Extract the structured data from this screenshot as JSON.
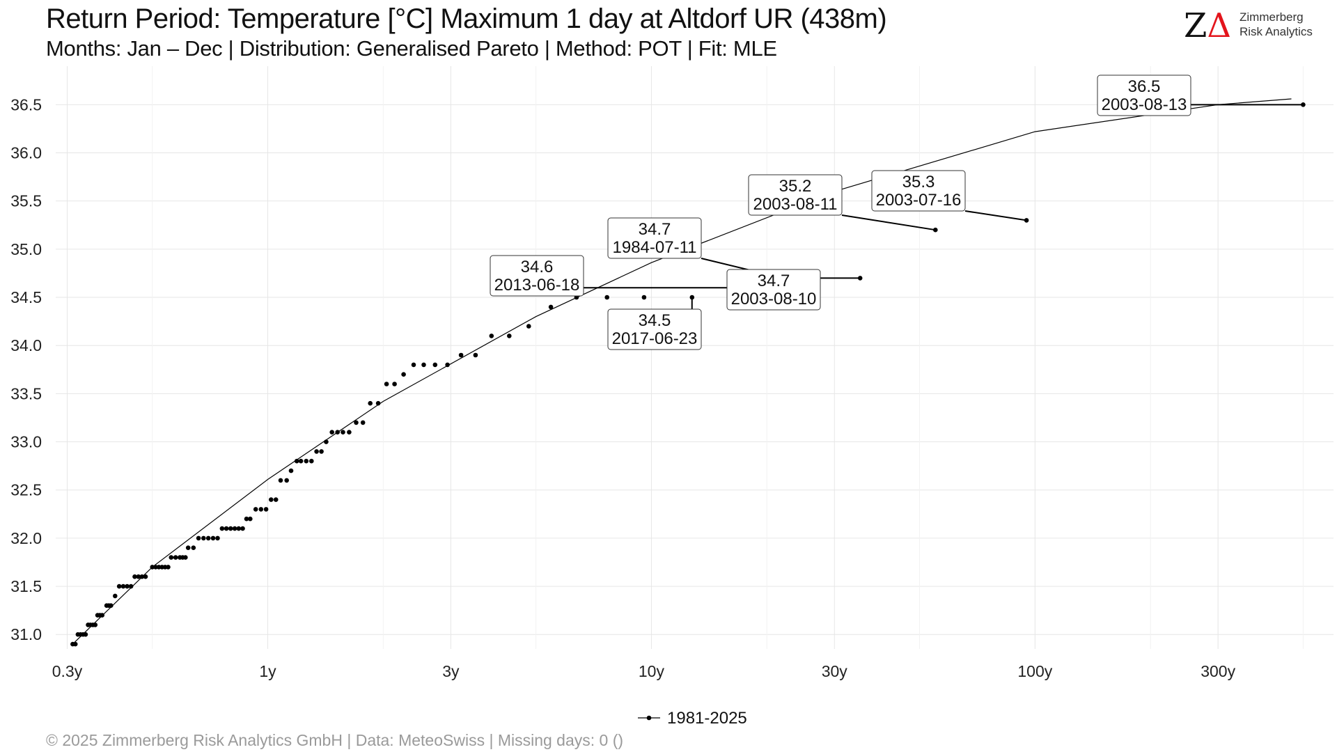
{
  "header": {
    "title": "Return Period: Temperature [°C] Maximum 1 day at Altdorf  UR (438m)",
    "subtitle": "Months: Jan – Dec | Distribution: Generalised Pareto | Method: POT | Fit: MLE"
  },
  "logo": {
    "mark_z": "Z",
    "mark_delta": "Δ",
    "line1": "Zimmerberg",
    "line2": "Risk Analytics"
  },
  "footer": {
    "text": "©  2025 Zimmerberg Risk Analytics GmbH | Data: MeteoSwiss | Missing days: 0 ()"
  },
  "colors": {
    "points": "#000000",
    "fit_line": "#000000",
    "grid": "#e6e6e6",
    "brand_red": "#e3141b"
  },
  "chart_data": {
    "type": "scatter",
    "x_scale": "log",
    "xlabel": "",
    "ylabel": "",
    "xlim": [
      0.28,
      600
    ],
    "ylim": [
      30.85,
      36.9
    ],
    "x_ticks": [
      0.3,
      1,
      3,
      10,
      30,
      100,
      300
    ],
    "x_tick_labels": [
      "0.3y",
      "1y",
      "3y",
      "10y",
      "30y",
      "100y",
      "300y"
    ],
    "y_ticks": [
      31.0,
      31.5,
      32.0,
      32.5,
      33.0,
      33.5,
      34.0,
      34.5,
      35.0,
      35.5,
      36.0,
      36.5
    ],
    "y_tick_labels": [
      "31.0",
      "31.5",
      "32.0",
      "32.5",
      "33.0",
      "33.5",
      "34.0",
      "34.5",
      "35.0",
      "35.5",
      "36.0",
      "36.5"
    ],
    "grid": true,
    "legend": {
      "position": "bottom",
      "entries": [
        "1981-2025"
      ]
    },
    "series": [
      {
        "name": "1981-2025",
        "points": [
          [
            0.31,
            30.9
          ],
          [
            0.315,
            30.9
          ],
          [
            0.32,
            31.0
          ],
          [
            0.325,
            31.0
          ],
          [
            0.33,
            31.0
          ],
          [
            0.335,
            31.0
          ],
          [
            0.34,
            31.1
          ],
          [
            0.345,
            31.1
          ],
          [
            0.35,
            31.1
          ],
          [
            0.355,
            31.1
          ],
          [
            0.36,
            31.2
          ],
          [
            0.365,
            31.2
          ],
          [
            0.37,
            31.2
          ],
          [
            0.38,
            31.3
          ],
          [
            0.385,
            31.3
          ],
          [
            0.39,
            31.3
          ],
          [
            0.4,
            31.4
          ],
          [
            0.41,
            31.5
          ],
          [
            0.42,
            31.5
          ],
          [
            0.43,
            31.5
          ],
          [
            0.44,
            31.5
          ],
          [
            0.45,
            31.6
          ],
          [
            0.46,
            31.6
          ],
          [
            0.47,
            31.6
          ],
          [
            0.48,
            31.6
          ],
          [
            0.5,
            31.7
          ],
          [
            0.51,
            31.7
          ],
          [
            0.52,
            31.7
          ],
          [
            0.53,
            31.7
          ],
          [
            0.54,
            31.7
          ],
          [
            0.55,
            31.7
          ],
          [
            0.56,
            31.8
          ],
          [
            0.575,
            31.8
          ],
          [
            0.59,
            31.8
          ],
          [
            0.6,
            31.8
          ],
          [
            0.61,
            31.8
          ],
          [
            0.62,
            31.9
          ],
          [
            0.64,
            31.9
          ],
          [
            0.66,
            32.0
          ],
          [
            0.68,
            32.0
          ],
          [
            0.7,
            32.0
          ],
          [
            0.72,
            32.0
          ],
          [
            0.74,
            32.0
          ],
          [
            0.76,
            32.1
          ],
          [
            0.78,
            32.1
          ],
          [
            0.8,
            32.1
          ],
          [
            0.82,
            32.1
          ],
          [
            0.84,
            32.1
          ],
          [
            0.86,
            32.1
          ],
          [
            0.88,
            32.2
          ],
          [
            0.9,
            32.2
          ],
          [
            0.93,
            32.3
          ],
          [
            0.96,
            32.3
          ],
          [
            0.99,
            32.3
          ],
          [
            1.02,
            32.4
          ],
          [
            1.05,
            32.4
          ],
          [
            1.08,
            32.6
          ],
          [
            1.12,
            32.6
          ],
          [
            1.15,
            32.7
          ],
          [
            1.19,
            32.8
          ],
          [
            1.22,
            32.8
          ],
          [
            1.26,
            32.8
          ],
          [
            1.3,
            32.8
          ],
          [
            1.34,
            32.9
          ],
          [
            1.38,
            32.9
          ],
          [
            1.42,
            33.0
          ],
          [
            1.47,
            33.1
          ],
          [
            1.52,
            33.1
          ],
          [
            1.57,
            33.1
          ],
          [
            1.63,
            33.1
          ],
          [
            1.7,
            33.2
          ],
          [
            1.77,
            33.2
          ],
          [
            1.85,
            33.4
          ],
          [
            1.94,
            33.4
          ],
          [
            2.04,
            33.6
          ],
          [
            2.14,
            33.6
          ],
          [
            2.26,
            33.7
          ],
          [
            2.4,
            33.8
          ],
          [
            2.55,
            33.8
          ],
          [
            2.73,
            33.8
          ],
          [
            2.94,
            33.8
          ],
          [
            3.19,
            33.9
          ],
          [
            3.48,
            33.9
          ],
          [
            3.83,
            34.1
          ],
          [
            4.26,
            34.1
          ],
          [
            4.79,
            34.2
          ],
          [
            5.47,
            34.4
          ],
          [
            6.38,
            34.5
          ],
          [
            7.66,
            34.5
          ],
          [
            9.57,
            34.5
          ],
          [
            12.76,
            34.5
          ],
          [
            19.15,
            34.6
          ],
          [
            22.0,
            34.7
          ],
          [
            35.0,
            34.7
          ],
          [
            55.0,
            35.2
          ],
          [
            95.0,
            35.3
          ],
          [
            500.0,
            36.5
          ]
        ]
      }
    ],
    "fit": {
      "name": "Generalised Pareto fit",
      "points": [
        [
          0.31,
          30.9
        ],
        [
          0.5,
          31.7
        ],
        [
          1.0,
          32.61
        ],
        [
          2.0,
          33.42
        ],
        [
          5.0,
          34.3
        ],
        [
          10.0,
          34.86
        ],
        [
          30.0,
          35.6
        ],
        [
          100.0,
          36.22
        ],
        [
          300.0,
          36.5
        ],
        [
          466.0,
          36.56
        ]
      ]
    },
    "annotations": [
      {
        "value": "36.5",
        "date": "2003-08-13"
      },
      {
        "value": "35.2",
        "date": "2003-08-11"
      },
      {
        "value": "35.3",
        "date": "2003-07-16"
      },
      {
        "value": "34.7",
        "date": "1984-07-11"
      },
      {
        "value": "34.6",
        "date": "2013-06-18"
      },
      {
        "value": "34.7",
        "date": "2003-08-10"
      },
      {
        "value": "34.5",
        "date": "2017-06-23"
      }
    ]
  }
}
